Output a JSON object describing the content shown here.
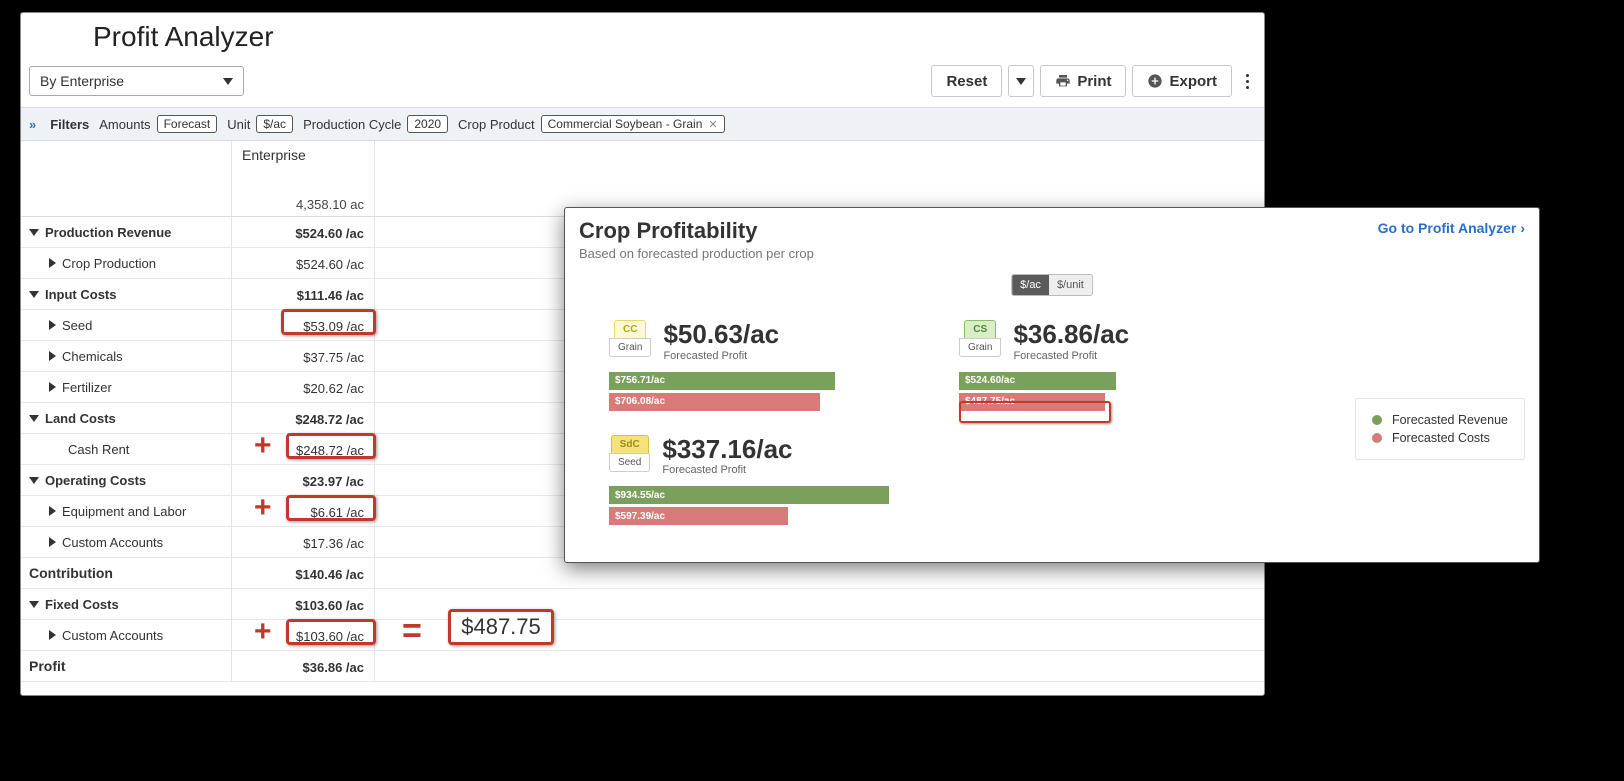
{
  "title": "Profit Analyzer",
  "view_select": "By Enterprise",
  "toolbar": {
    "reset": "Reset",
    "print": "Print",
    "export": "Export"
  },
  "filters": {
    "label": "Filters",
    "amounts_label": "Amounts",
    "amounts_value": "Forecast",
    "unit_label": "Unit",
    "unit_value": "$/ac",
    "cycle_label": "Production Cycle",
    "cycle_value": "2020",
    "product_label": "Crop Product",
    "product_value": "Commercial Soybean - Grain"
  },
  "header_col": {
    "enterprise": "Enterprise",
    "acres": "4,358.10 ac"
  },
  "rows": {
    "prod_rev": "Production Revenue",
    "prod_rev_v": "$524.60 /ac",
    "crop_prod": "Crop Production",
    "crop_prod_v": "$524.60 /ac",
    "input_costs": "Input Costs",
    "input_costs_v": "$111.46 /ac",
    "seed": "Seed",
    "seed_v": "$53.09 /ac",
    "chemicals": "Chemicals",
    "chemicals_v": "$37.75 /ac",
    "fertilizer": "Fertilizer",
    "fertilizer_v": "$20.62 /ac",
    "land_costs": "Land Costs",
    "land_costs_v": "$248.72 /ac",
    "cash_rent": "Cash Rent",
    "cash_rent_v": "$248.72 /ac",
    "op_costs": "Operating Costs",
    "op_costs_v": "$23.97 /ac",
    "equip": "Equipment and Labor",
    "equip_v": "$6.61 /ac",
    "custom1": "Custom Accounts",
    "custom1_v": "$17.36 /ac",
    "contribution": "Contribution",
    "contribution_v": "$140.46 /ac",
    "fixed": "Fixed Costs",
    "fixed_v": "$103.60 /ac",
    "custom2": "Custom Accounts",
    "custom2_v": "$103.60 /ac",
    "profit": "Profit",
    "profit_v": "$36.86 /ac"
  },
  "sum_result": "$487.75",
  "overlay": {
    "title": "Crop Profitability",
    "subtitle": "Based on forecasted production per crop",
    "link": "Go to Profit Analyzer",
    "toggle": {
      "a": "$/ac",
      "b": "$/unit"
    },
    "legend": {
      "rev": "Forecasted Revenue",
      "cost": "Forecasted Costs"
    },
    "colors": {
      "green": "#7ba05b",
      "red": "#d87a77",
      "cc_tag_bg": "#fff8d6",
      "cc_tag_border": "#e8d86a",
      "cs_tag_bg": "#d9edc8",
      "cs_tag_border": "#8cbf63",
      "sdc_tag_bg": "#f6e27a",
      "sdc_tag_border": "#d8c04a"
    },
    "cards": [
      {
        "tag": "CC",
        "tag_sub": "Grain",
        "value": "$50.63/ac",
        "sub": "Forecasted Profit",
        "rev_text": "$756.71/ac",
        "rev_w": 226,
        "cost_text": "$706.08/ac",
        "cost_w": 211
      },
      {
        "tag": "CS",
        "tag_sub": "Grain",
        "value": "$36.86/ac",
        "sub": "Forecasted Profit",
        "rev_text": "$524.60/ac",
        "rev_w": 157,
        "cost_text": "$487.75/ac",
        "cost_w": 146
      },
      {
        "tag": "SdC",
        "tag_sub": "Seed",
        "value": "$337.16/ac",
        "sub": "Forecasted Profit",
        "rev_text": "$934.55/ac",
        "rev_w": 280,
        "cost_text": "$597.39/ac",
        "cost_w": 179
      }
    ]
  }
}
